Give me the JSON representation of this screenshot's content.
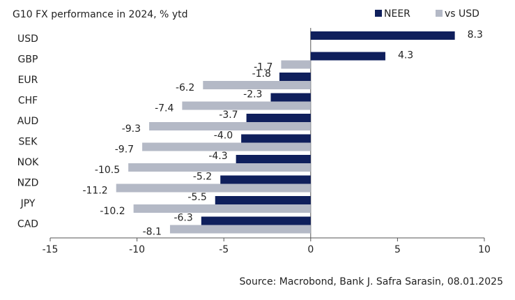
{
  "chart_data": {
    "type": "hbar",
    "title": "G10 FX performance in 2024, % ytd",
    "source": "Source: Macrobond, Bank J. Safra Sarasin, 08.01.2025",
    "categories": [
      "USD",
      "GBP",
      "EUR",
      "CHF",
      "AUD",
      "SEK",
      "NOK",
      "NZD",
      "JPY",
      "CAD"
    ],
    "series": [
      {
        "name": "NEER",
        "color": "#0f1f5c",
        "values": [
          8.3,
          4.3,
          -1.8,
          -2.3,
          -3.7,
          -4.0,
          -4.3,
          -5.2,
          -5.5,
          -6.3
        ],
        "value_labels": [
          "8.3",
          "4.3",
          "-1.8",
          "-2.3",
          "-3.7",
          "-4.0",
          "-4.3",
          "-5.2",
          "-5.5",
          "-6.3"
        ]
      },
      {
        "name": "vs USD",
        "color": "#b4b9c6",
        "values": [
          null,
          -1.7,
          -6.2,
          -7.4,
          -9.3,
          -9.7,
          -10.5,
          -11.2,
          -10.2,
          -8.1
        ],
        "value_labels": [
          null,
          "-1.7",
          "-6.2",
          "-7.4",
          "-9.3",
          "-9.7",
          "-10.5",
          "-11.2",
          "-10.2",
          "-8.1"
        ]
      }
    ],
    "xlim": [
      -15,
      10
    ],
    "xticks": [
      -15,
      -10,
      -5,
      0,
      5,
      10
    ]
  }
}
